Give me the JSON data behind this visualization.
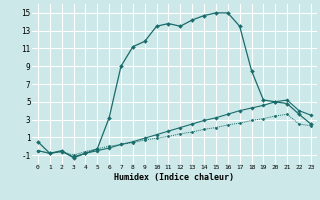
{
  "title": "",
  "xlabel": "Humidex (Indice chaleur)",
  "background_color": "#cce8e8",
  "line_color": "#1a6b6b",
  "grid_color": "#ffffff",
  "xlim": [
    -0.5,
    23.5
  ],
  "ylim": [
    -2.0,
    16.0
  ],
  "xticks": [
    0,
    1,
    2,
    3,
    4,
    5,
    6,
    7,
    8,
    9,
    10,
    11,
    12,
    13,
    14,
    15,
    16,
    17,
    18,
    19,
    20,
    21,
    22,
    23
  ],
  "yticks": [
    -1,
    1,
    3,
    5,
    7,
    9,
    11,
    13,
    15
  ],
  "line1_x": [
    0,
    1,
    2,
    3,
    4,
    5,
    6,
    7,
    8,
    9,
    10,
    11,
    12,
    13,
    14,
    15,
    16,
    17,
    18,
    19,
    20,
    21,
    22,
    23
  ],
  "line1_y": [
    0.5,
    -0.8,
    -0.5,
    -1.3,
    -0.8,
    -0.3,
    3.2,
    9.0,
    11.2,
    11.8,
    13.5,
    13.8,
    13.5,
    14.2,
    14.7,
    15.0,
    15.0,
    13.5,
    8.5,
    5.2,
    5.0,
    4.8,
    3.6,
    2.5
  ],
  "line2_x": [
    0,
    1,
    2,
    3,
    4,
    5,
    6,
    7,
    8,
    9,
    10,
    11,
    12,
    13,
    14,
    15,
    16,
    17,
    18,
    19,
    20,
    21,
    22,
    23
  ],
  "line2_y": [
    -0.5,
    -0.8,
    -0.6,
    -1.2,
    -0.8,
    -0.5,
    -0.2,
    0.2,
    0.5,
    0.9,
    1.3,
    1.7,
    2.1,
    2.5,
    2.9,
    3.2,
    3.6,
    4.0,
    4.3,
    4.6,
    5.0,
    5.2,
    4.0,
    3.5
  ],
  "line3_x": [
    0,
    1,
    2,
    3,
    4,
    5,
    6,
    7,
    8,
    9,
    10,
    11,
    12,
    13,
    14,
    15,
    16,
    17,
    18,
    19,
    20,
    21,
    22,
    23
  ],
  "line3_y": [
    -0.5,
    -0.8,
    -0.6,
    -1.0,
    -0.6,
    -0.3,
    0.0,
    0.2,
    0.4,
    0.7,
    0.9,
    1.1,
    1.4,
    1.6,
    1.9,
    2.1,
    2.4,
    2.6,
    2.9,
    3.1,
    3.4,
    3.6,
    2.5,
    2.3
  ]
}
